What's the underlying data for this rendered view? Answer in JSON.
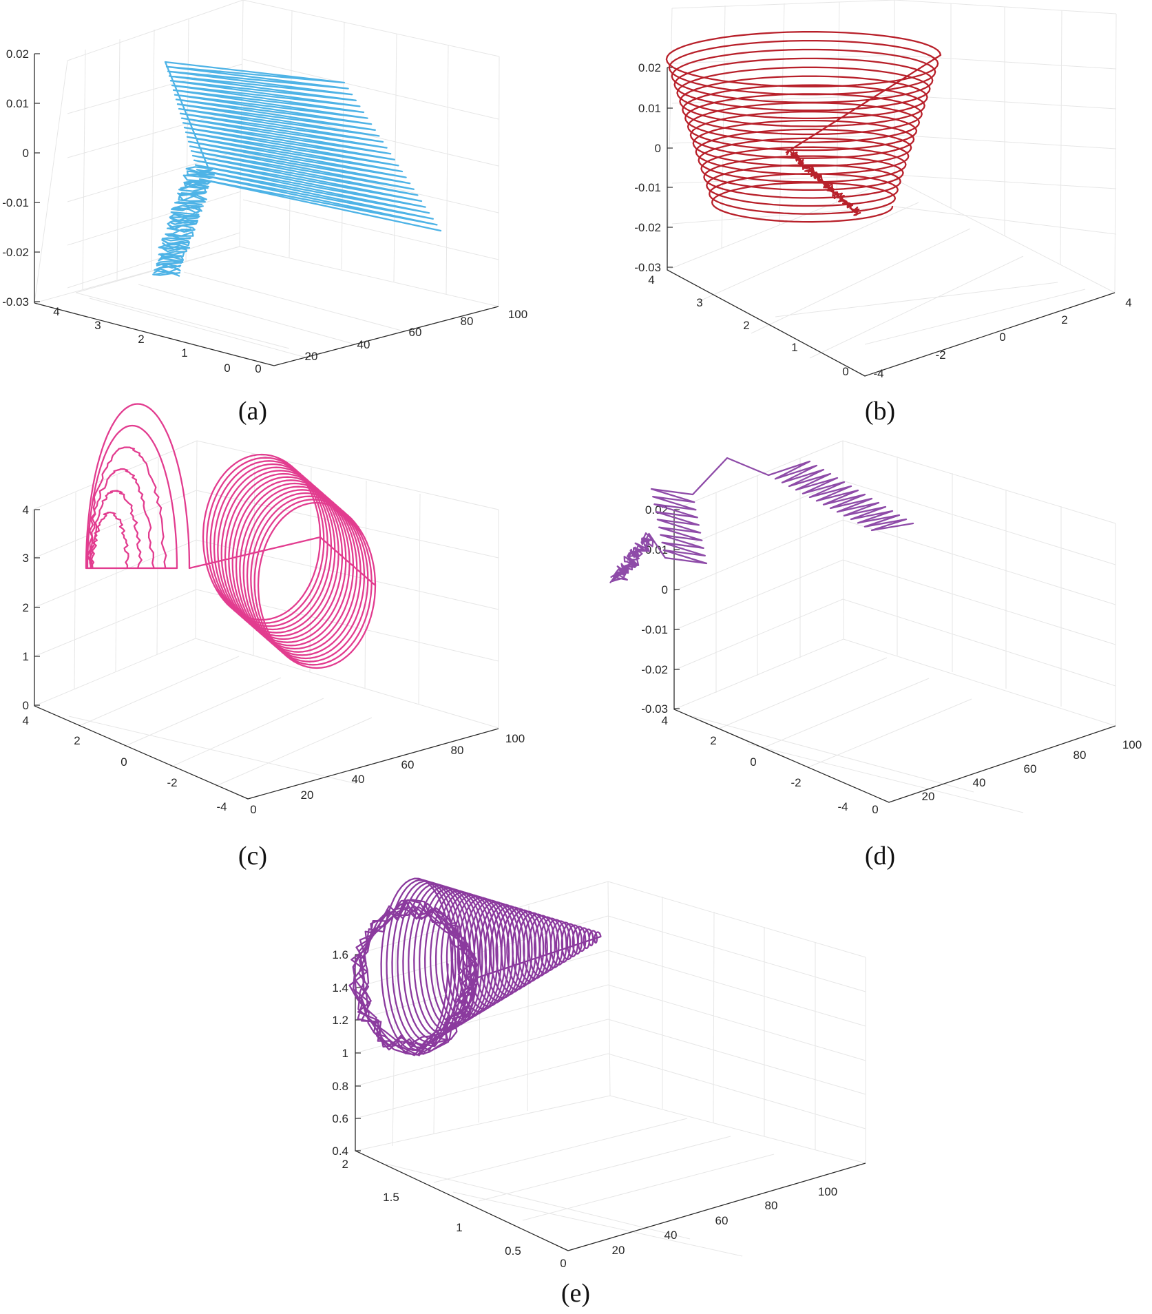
{
  "chart_data": [
    {
      "type": "line",
      "caption": "(a)",
      "color": "#4eb3e6",
      "x": {
        "ticks": [
          0,
          20,
          40,
          60,
          80,
          100
        ],
        "tick_labels": [
          "0",
          "20",
          "40",
          "60",
          "80",
          "100"
        ],
        "lim": [
          0,
          100
        ]
      },
      "y": {
        "ticks": [
          0,
          1,
          2,
          3,
          4
        ],
        "tick_labels": [
          "0",
          "1",
          "2",
          "3",
          "4"
        ],
        "lim": [
          0,
          4.5
        ]
      },
      "z": {
        "ticks": [
          -0.03,
          -0.02,
          -0.01,
          0,
          0.01,
          0.02
        ],
        "tick_labels": [
          "-0.03",
          "-0.02",
          "-0.01",
          "0",
          "0.01",
          "0.02"
        ],
        "lim": [
          -0.03,
          0.02
        ]
      },
      "grid": true,
      "shape": "zigzag",
      "series": [
        {
          "t": [
            0,
            100
          ],
          "y_span": [
            4.3,
            3.6
          ],
          "z_span": [
            -0.03,
            0.018
          ],
          "description_points": [
            [
              2,
              4.2,
              -0.03
            ],
            [
              30,
              4.0,
              -0.018
            ],
            [
              50,
              3.9,
              0.016
            ],
            [
              100,
              3.6,
              -0.005
            ]
          ]
        }
      ]
    },
    {
      "type": "line",
      "caption": "(b)",
      "color": "#b8202a",
      "x": {
        "ticks": [
          -4,
          -2,
          0,
          2,
          4
        ],
        "tick_labels": [
          "-4",
          "-2",
          "0",
          "2",
          "4"
        ],
        "lim": [
          -4,
          4
        ]
      },
      "y": {
        "ticks": [
          0,
          1,
          2,
          3,
          4
        ],
        "tick_labels": [
          "0",
          "1",
          "2",
          "3",
          "4"
        ],
        "lim": [
          0,
          4
        ]
      },
      "z": {
        "ticks": [
          -0.03,
          -0.02,
          -0.01,
          0,
          0.01,
          0.02
        ],
        "tick_labels": [
          "-0.03",
          "-0.02",
          "-0.01",
          "0",
          "0.01",
          "0.02"
        ],
        "lim": [
          -0.03,
          0.02
        ]
      },
      "grid": true,
      "shape": "helix",
      "series": [
        {
          "loops": 18,
          "z_span": [
            -0.025,
            0.027
          ],
          "radius_x": [
            2.2,
            3.2
          ]
        }
      ]
    },
    {
      "type": "line",
      "caption": "(c)",
      "color": "#e23c8f",
      "x": {
        "ticks": [
          0,
          20,
          40,
          60,
          80,
          100
        ],
        "tick_labels": [
          "0",
          "20",
          "40",
          "60",
          "80",
          "100"
        ],
        "lim": [
          0,
          100
        ]
      },
      "y": {
        "ticks": [
          -4,
          -2,
          0,
          2,
          4
        ],
        "tick_labels": [
          "-4",
          "-2",
          "0",
          "2",
          "4"
        ],
        "lim": [
          -4,
          4
        ]
      },
      "z": {
        "ticks": [
          0,
          1,
          2,
          3,
          4
        ],
        "tick_labels": [
          "0",
          "1",
          "2",
          "3",
          "4"
        ],
        "lim": [
          0,
          4
        ]
      },
      "grid": true,
      "shape": "loops",
      "series": [
        {
          "groups": [
            [
              0,
              15
            ],
            [
              30,
              75
            ]
          ],
          "z_max": 3.6
        }
      ]
    },
    {
      "type": "line",
      "caption": "(d)",
      "color": "#8e4ba8",
      "x": {
        "ticks": [
          0,
          20,
          40,
          60,
          80,
          100
        ],
        "tick_labels": [
          "0",
          "20",
          "40",
          "60",
          "80",
          "100"
        ],
        "lim": [
          0,
          100
        ]
      },
      "y": {
        "ticks": [
          -4,
          -2,
          0,
          2,
          4
        ],
        "tick_labels": [
          "-4",
          "-2",
          "0",
          "2",
          "4"
        ],
        "lim": [
          -4,
          4
        ]
      },
      "z": {
        "ticks": [
          -0.03,
          -0.02,
          -0.01,
          0,
          0.01,
          0.02
        ],
        "tick_labels": [
          "-0.03",
          "-0.02",
          "-0.01",
          "0",
          "0.01",
          "0.02"
        ],
        "lim": [
          -0.03,
          0.02
        ]
      },
      "grid": true,
      "shape": "zigzag",
      "series": [
        {
          "t": [
            0,
            100
          ],
          "z_span": [
            -0.028,
            0.02
          ]
        }
      ]
    },
    {
      "type": "line",
      "caption": "(e)",
      "color": "#8b3a9e",
      "x": {
        "ticks": [
          0,
          20,
          40,
          60,
          80,
          100
        ],
        "tick_labels": [
          "0",
          "20",
          "40",
          "60",
          "80",
          "100"
        ],
        "lim": [
          0,
          100
        ]
      },
      "y": {
        "ticks": [
          0.5,
          1,
          1.5,
          2
        ],
        "tick_labels": [
          "0.5",
          "1",
          "1.5",
          "2"
        ],
        "lim": [
          0.3,
          2
        ]
      },
      "z": {
        "ticks": [
          0.4,
          0.6,
          0.8,
          1,
          1.2,
          1.4,
          1.6
        ],
        "tick_labels": [
          "0.4",
          "0.6",
          "0.8",
          "1",
          "1.2",
          "1.4",
          "1.6"
        ],
        "lim": [
          0.4,
          1.6
        ]
      },
      "grid": true,
      "shape": "funnel",
      "series": [
        {
          "loops": 40,
          "radius_span": [
            0.45,
            0.03
          ],
          "center": [
            1.05,
            1.0
          ]
        }
      ]
    }
  ]
}
